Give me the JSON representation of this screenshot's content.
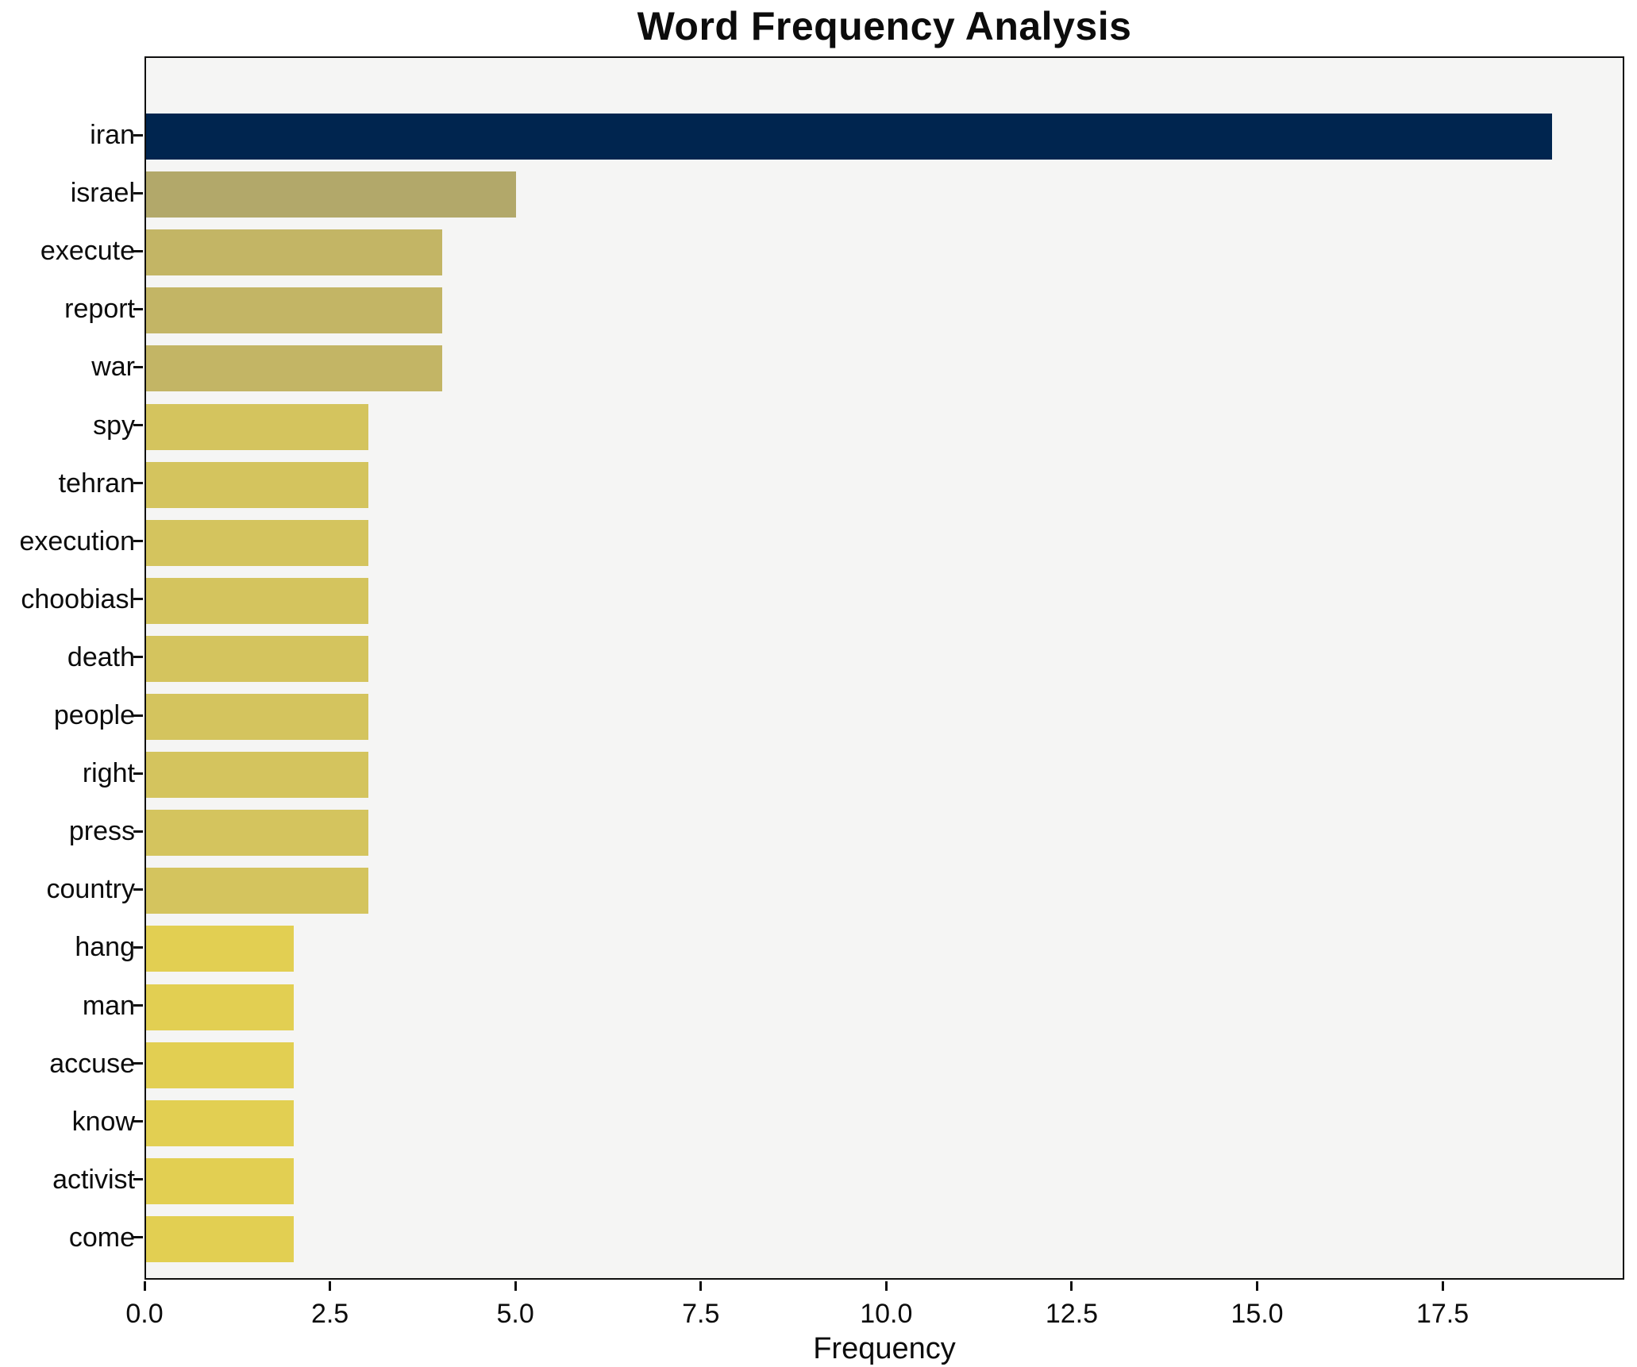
{
  "title": "Word Frequency Analysis",
  "chart_data": {
    "type": "bar",
    "orientation": "horizontal",
    "title": "Word Frequency Analysis",
    "xlabel": "Frequency",
    "ylabel": "",
    "categories": [
      "iran",
      "israel",
      "execute",
      "report",
      "war",
      "spy",
      "tehran",
      "execution",
      "choobiasl",
      "death",
      "people",
      "right",
      "press",
      "country",
      "hang",
      "man",
      "accuse",
      "know",
      "activist",
      "come"
    ],
    "values": [
      19,
      5,
      4,
      4,
      4,
      3,
      3,
      3,
      3,
      3,
      3,
      3,
      3,
      3,
      2,
      2,
      2,
      2,
      2,
      2
    ],
    "bar_colors": [
      "#00254f",
      "#b2a86a",
      "#c3b565",
      "#c3b565",
      "#c3b565",
      "#d4c45e",
      "#d4c45e",
      "#d4c45e",
      "#d4c45e",
      "#d4c45e",
      "#d4c45e",
      "#d4c45e",
      "#d4c45e",
      "#d4c45e",
      "#e2cf52",
      "#e2cf52",
      "#e2cf52",
      "#e2cf52",
      "#e2cf52",
      "#e2cf52"
    ],
    "xlim": [
      0,
      19.95
    ],
    "xticks": [
      0.0,
      2.5,
      5.0,
      7.5,
      10.0,
      12.5,
      15.0,
      17.5
    ],
    "xtick_labels": [
      "0.0",
      "2.5",
      "5.0",
      "7.5",
      "10.0",
      "12.5",
      "15.0",
      "17.5"
    ],
    "grid": false,
    "legend": null,
    "colors": {
      "plot_background": "#f5f5f4",
      "figure_background": "#ffffff",
      "spine": "#0f0f0f",
      "text": "#0c0c0c",
      "bar_high": "#00254f",
      "bar_low": "#e2cf52"
    }
  }
}
